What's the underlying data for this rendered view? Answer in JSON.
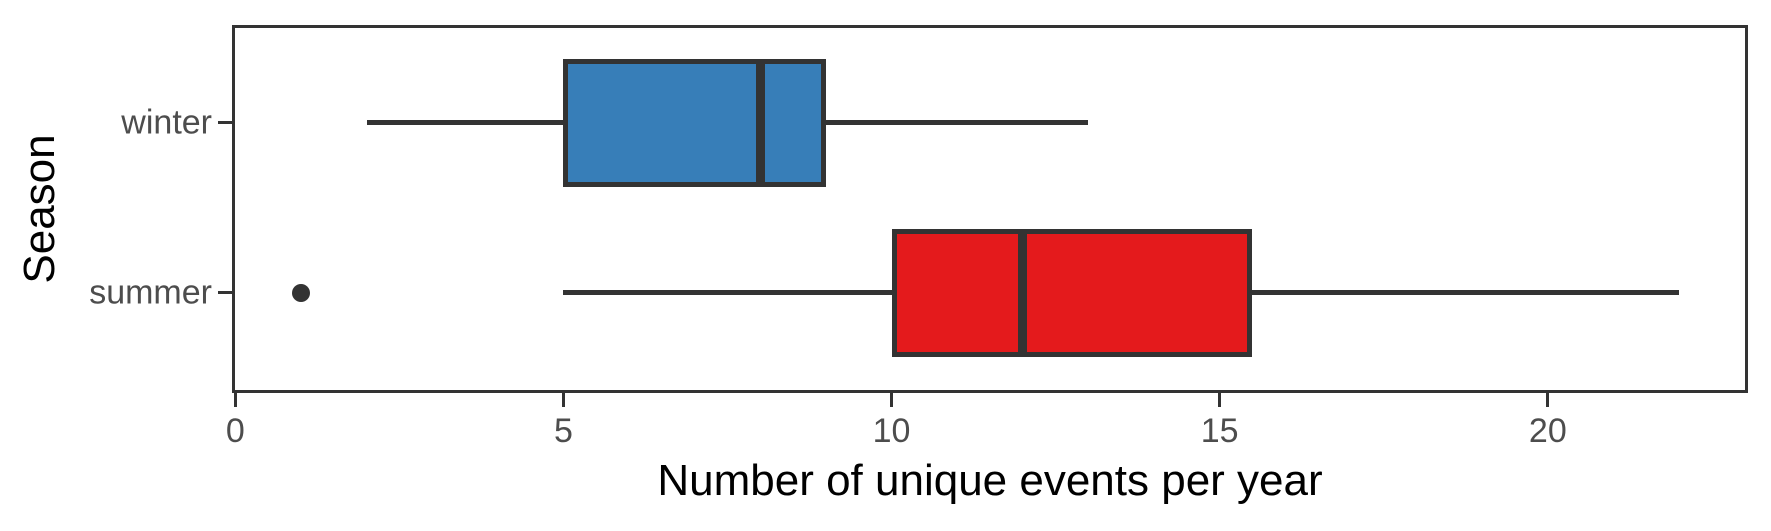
{
  "chart_data": {
    "type": "boxplot",
    "orientation": "horizontal",
    "xlabel": "Number of unique events per year",
    "ylabel": "Season",
    "categories": [
      "winter",
      "summer"
    ],
    "series": [
      {
        "name": "winter",
        "whisker_low": 2,
        "q1": 5,
        "median": 8,
        "q3": 9,
        "whisker_high": 13,
        "outliers": [],
        "fill": "#377EB8"
      },
      {
        "name": "summer",
        "whisker_low": 5,
        "q1": 10,
        "median": 12,
        "q3": 15.5,
        "whisker_high": 22,
        "outliers": [
          1
        ],
        "fill": "#E41A1C"
      }
    ],
    "x_ticks": [
      0,
      5,
      10,
      15,
      20
    ],
    "xlim": [
      -0.05,
      23.05
    ],
    "grid": false,
    "legend": false
  },
  "colors": {
    "box_border": "#333333",
    "whisker": "#333333",
    "median": "#333333",
    "outlier": "#333333",
    "panel_border": "#333333",
    "tick_mark": "#333333",
    "tick_label": "#4D4D4D",
    "axis_title": "#000000",
    "background": "#FFFFFF"
  }
}
